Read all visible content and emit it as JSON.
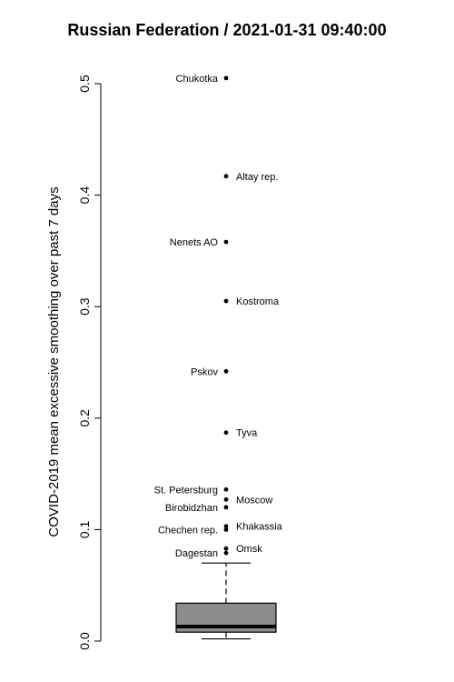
{
  "chart_data": {
    "type": "boxplot",
    "title": "Russian Federation / 2021-01-31 09:40:00",
    "ylabel": "COVID-2019 mean excessive smoothing over past 7 days",
    "ylim": [
      0,
      0.5
    ],
    "yticks": [
      "0.0",
      "0.1",
      "0.2",
      "0.3",
      "0.4",
      "0.5"
    ],
    "box": {
      "whisker_low": 0.002,
      "q1": 0.008,
      "median": 0.013,
      "q3": 0.034,
      "whisker_high": 0.07
    },
    "outliers": [
      {
        "label": "Chukotka",
        "value": 0.505,
        "label_side": "left"
      },
      {
        "label": "Altay rep.",
        "value": 0.417,
        "label_side": "right"
      },
      {
        "label": "Nenets AO",
        "value": 0.358,
        "label_side": "left"
      },
      {
        "label": "Kostroma",
        "value": 0.305,
        "label_side": "right"
      },
      {
        "label": "Pskov",
        "value": 0.242,
        "label_side": "left"
      },
      {
        "label": "Tyva",
        "value": 0.187,
        "label_side": "right"
      },
      {
        "label": "St. Petersburg",
        "value": 0.136,
        "label_side": "left"
      },
      {
        "label": "Moscow",
        "value": 0.127,
        "label_side": "right"
      },
      {
        "label": "Birobidzhan",
        "value": 0.12,
        "label_side": "left"
      },
      {
        "label": "Khakassia",
        "value": 0.103,
        "label_side": "right"
      },
      {
        "label": "Chechen rep.",
        "value": 0.1,
        "label_side": "left"
      },
      {
        "label": "Omsk",
        "value": 0.083,
        "label_side": "right"
      },
      {
        "label": "Dagestan",
        "value": 0.079,
        "label_side": "left"
      }
    ],
    "colors": {
      "box_fill": "#8c8c8c",
      "line": "#000000"
    }
  }
}
